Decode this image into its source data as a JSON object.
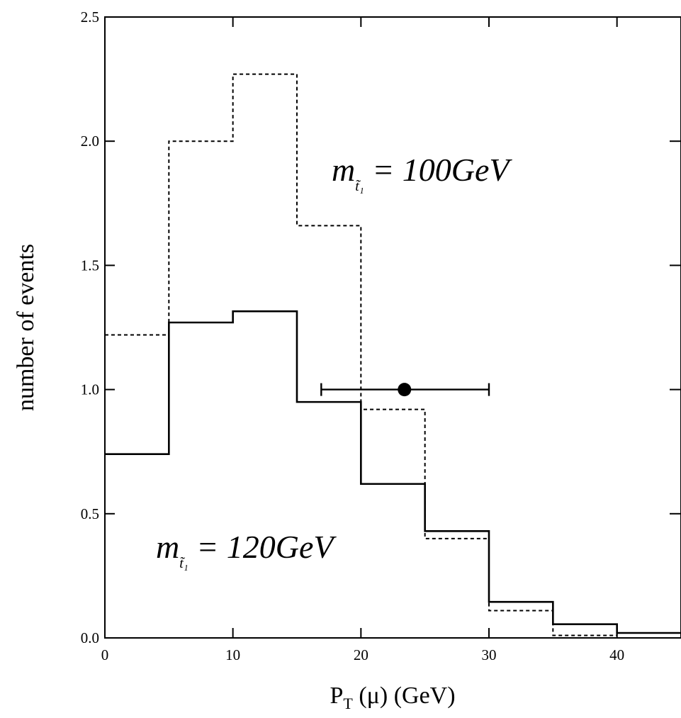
{
  "chart_data": {
    "type": "histogram",
    "xlabel": {
      "main": "P",
      "sub": "T",
      "rest": " (μ) (GeV)"
    },
    "ylabel": "number of events",
    "xlim": [
      0,
      45
    ],
    "ylim": [
      0,
      2.5
    ],
    "x_ticks": [
      0,
      10,
      20,
      30,
      40
    ],
    "x_tick_labels": [
      "0",
      "10",
      "20",
      "30",
      "40"
    ],
    "y_ticks": [
      0,
      0.5,
      1.0,
      1.5,
      2.0,
      2.5
    ],
    "y_tick_labels": [
      "0.0",
      "0.5",
      "1.0",
      "1.5",
      "2.0",
      "2.5"
    ],
    "bin_edges": [
      0,
      5,
      10,
      15,
      20,
      25,
      30,
      35,
      40,
      45
    ],
    "series": [
      {
        "style": "dashed",
        "values": [
          1.22,
          2.0,
          2.27,
          1.66,
          0.92,
          0.4,
          0.11,
          0.01,
          0.02
        ]
      },
      {
        "style": "solid",
        "values": [
          0.74,
          1.27,
          1.315,
          0.95,
          0.62,
          0.43,
          0.145,
          0.055,
          0.02
        ]
      }
    ],
    "data_point": {
      "x": 23.4,
      "y": 1.0,
      "x_err_low": 16.9,
      "x_err_high": 30.0
    },
    "annotations": [
      {
        "id": "m100",
        "label_main": "m",
        "label_sub": "t̃₁",
        "label_rest": " = 100GeV"
      },
      {
        "id": "m120",
        "label_main": "m",
        "label_sub": "t̃₁",
        "label_rest": " = 120GeV"
      }
    ]
  }
}
